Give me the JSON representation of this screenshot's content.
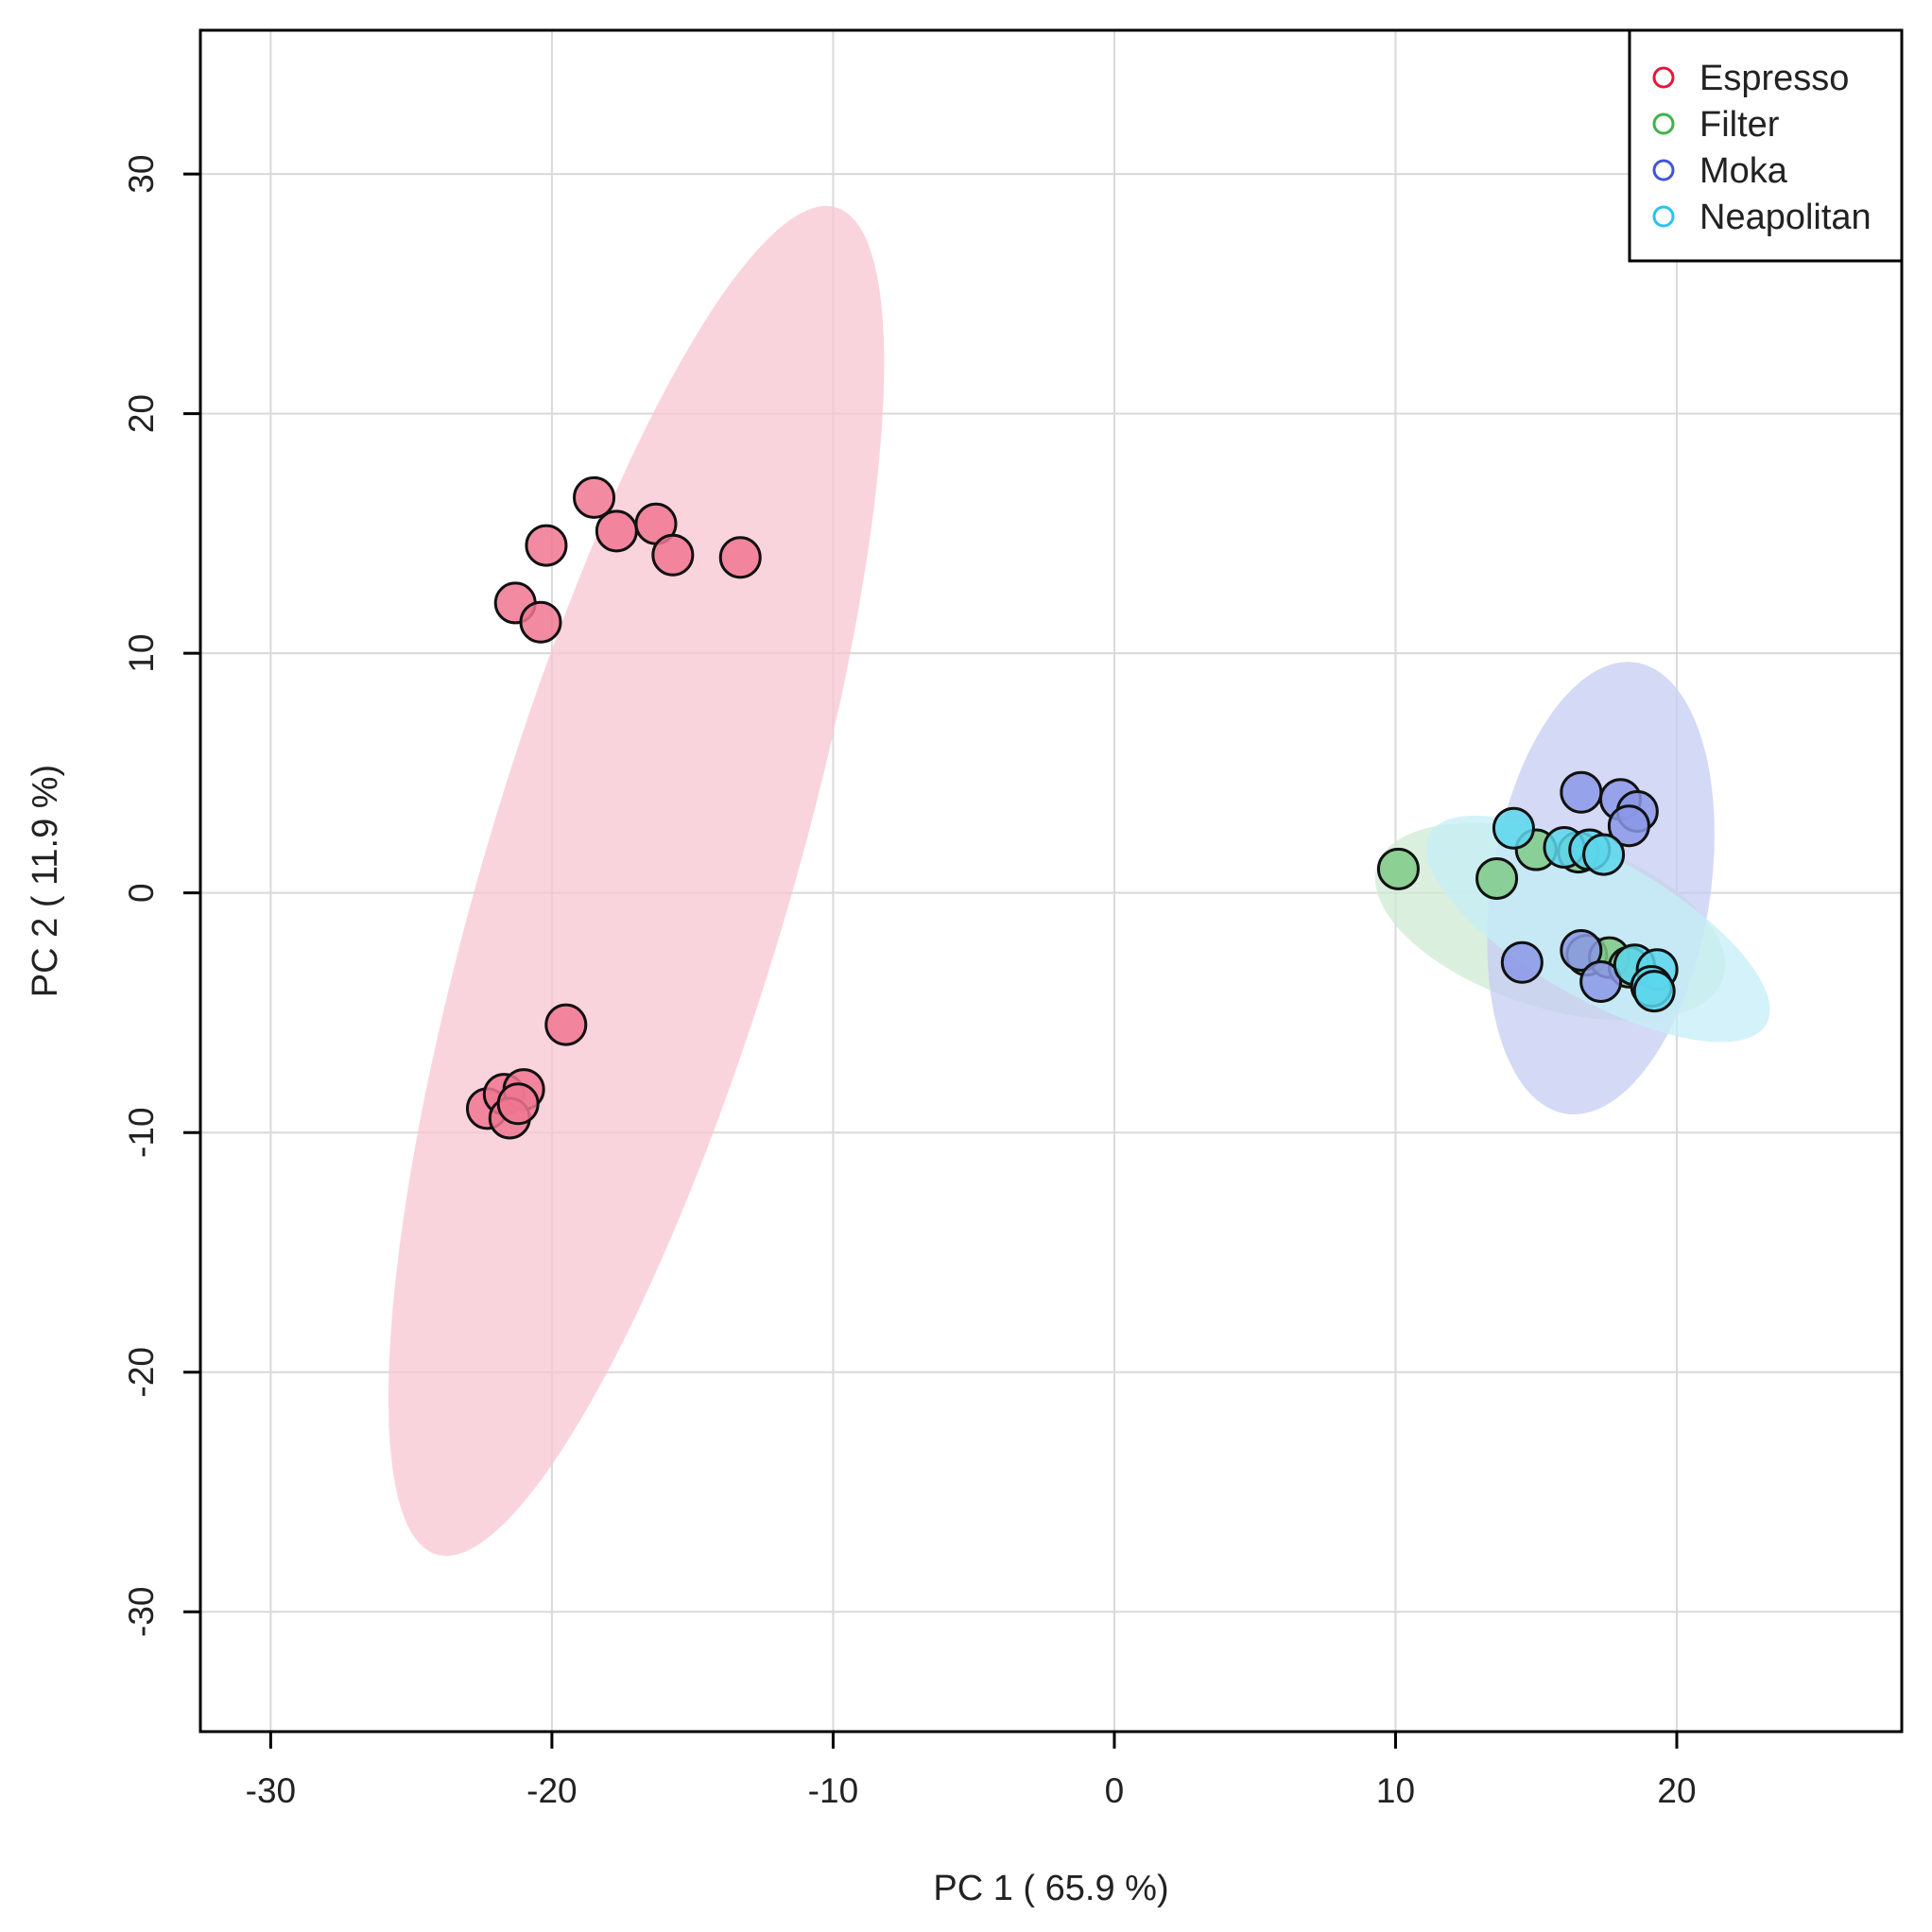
{
  "chart_data": {
    "type": "scatter",
    "title": "",
    "xlabel": "PC 1 ( 65.9 %)",
    "ylabel": "PC 2 ( 11.9 %)",
    "xlim": [
      -32.5,
      28
    ],
    "ylim": [
      -35,
      36
    ],
    "xticks": [
      -30,
      -20,
      -10,
      0,
      10,
      20
    ],
    "yticks": [
      -30,
      -20,
      -10,
      0,
      10,
      20,
      30
    ],
    "grid": true,
    "legend_position": "top-right",
    "series": [
      {
        "name": "Espresso",
        "color": "#e8153c",
        "fill": "#f07792",
        "ellipse_fill": "#f8c6d0",
        "ellipse": {
          "cx": -17,
          "cy": 0.5,
          "rx": 29,
          "ry": 5.5,
          "angle_deg": 76
        },
        "points": [
          [
            -18.5,
            16.5
          ],
          [
            -17.7,
            15.1
          ],
          [
            -16.3,
            15.4
          ],
          [
            -15.7,
            14.1
          ],
          [
            -20.2,
            14.5
          ],
          [
            -13.3,
            14.0
          ],
          [
            -21.3,
            12.1
          ],
          [
            -20.4,
            11.3
          ],
          [
            -19.5,
            -5.5
          ],
          [
            -22.3,
            -9.0
          ],
          [
            -21.7,
            -8.4
          ],
          [
            -21.0,
            -8.2
          ],
          [
            -21.5,
            -9.4
          ],
          [
            -21.2,
            -8.8
          ]
        ]
      },
      {
        "name": "Filter",
        "color": "#3cb44b",
        "fill": "#7fca86",
        "ellipse_fill": "#cfe9d4",
        "ellipse": {
          "cx": 15.5,
          "cy": -1.2,
          "rx": 6.6,
          "ry": 3.5,
          "angle_deg": -23
        },
        "points": [
          [
            10.1,
            1.0
          ],
          [
            13.6,
            0.6
          ],
          [
            15.0,
            1.8
          ],
          [
            16.5,
            1.7
          ],
          [
            16.8,
            -2.6
          ],
          [
            17.6,
            -2.7
          ],
          [
            18.3,
            -3.1
          ]
        ]
      },
      {
        "name": "Moka",
        "color": "#4055d8",
        "fill": "#8b98e6",
        "ellipse_fill": "#c6ccf2",
        "ellipse": {
          "cx": 17.3,
          "cy": 0.2,
          "rx": 9.5,
          "ry": 3.9,
          "angle_deg": 83
        },
        "points": [
          [
            16.6,
            4.2
          ],
          [
            18.0,
            3.9
          ],
          [
            18.6,
            3.4
          ],
          [
            18.3,
            2.8
          ],
          [
            14.5,
            -2.9
          ],
          [
            16.6,
            -2.4
          ],
          [
            17.3,
            -3.7
          ]
        ]
      },
      {
        "name": "Neapolitan",
        "color": "#29c4e8",
        "fill": "#5cd6ec",
        "ellipse_fill": "#c6eef7",
        "ellipse": {
          "cx": 17.2,
          "cy": -1.5,
          "rx": 7.2,
          "ry": 2.8,
          "angle_deg": -35
        },
        "points": [
          [
            14.2,
            2.7
          ],
          [
            16.0,
            1.9
          ],
          [
            16.9,
            1.8
          ],
          [
            17.4,
            1.6
          ],
          [
            18.5,
            -3.0
          ],
          [
            19.3,
            -3.2
          ],
          [
            19.1,
            -3.9
          ],
          [
            19.2,
            -4.1
          ]
        ]
      }
    ]
  }
}
